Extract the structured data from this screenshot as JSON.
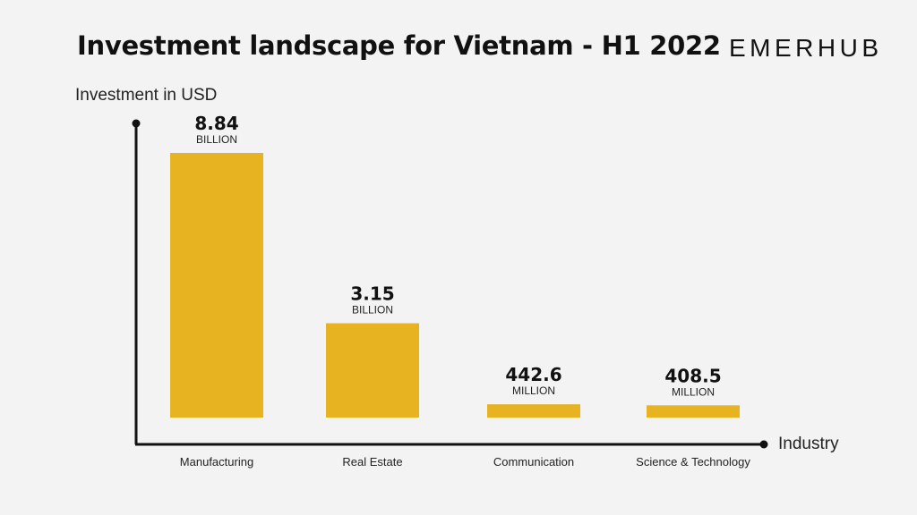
{
  "header": {
    "title": "Investment landscape for Vietnam - H1 2022",
    "brand": "EMERHUB"
  },
  "colors": {
    "bar": "#e8b321",
    "axis": "#111111",
    "background": "#f3f3f3"
  },
  "chart_data": {
    "type": "bar",
    "title": "Investment landscape for Vietnam - H1 2022",
    "ylabel": "Investment in USD",
    "xlabel": "Industry",
    "categories": [
      "Manufacturing",
      "Real Estate",
      "Communication",
      "Science & Technology"
    ],
    "values": [
      8840000000,
      3150000000,
      442600000,
      408500000
    ],
    "value_labels": [
      "8.84",
      "3.15",
      "442.6",
      "408.5"
    ],
    "unit_labels": [
      "BILLION",
      "BILLION",
      "MILLION",
      "MILLION"
    ],
    "grid": false,
    "legend": "none"
  }
}
